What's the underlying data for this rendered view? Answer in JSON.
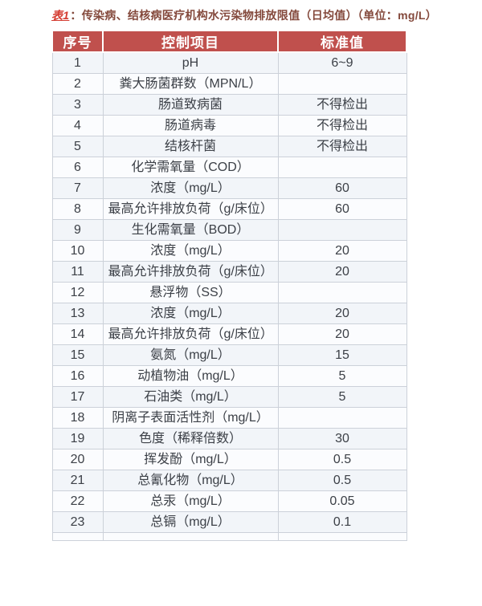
{
  "title": {
    "label": "表1",
    "rest": "：传染病、结核病医疗机构水污染物排放限值（日均值）（单位：mg/L）"
  },
  "colors": {
    "header_bg": "#c0504d",
    "header_text": "#ffffff",
    "title_label": "#d43b30",
    "title_text": "#84493c"
  },
  "chart_data": {
    "type": "table",
    "title": "表1：传染病、结核病医疗机构水污染物排放限值（日均值）（单位：mg/L）",
    "columns": [
      "序号",
      "控制项目",
      "标准值"
    ],
    "rows": [
      {
        "no": "1",
        "item": "pH",
        "value": "6~9"
      },
      {
        "no": "2",
        "item": "粪大肠菌群数（MPN/L）",
        "value": ""
      },
      {
        "no": "3",
        "item": "肠道致病菌",
        "value": "不得检出"
      },
      {
        "no": "4",
        "item": "肠道病毒",
        "value": "不得检出"
      },
      {
        "no": "5",
        "item": "结核杆菌",
        "value": "不得检出"
      },
      {
        "no": "6",
        "item": "化学需氧量（COD）",
        "value": ""
      },
      {
        "no": "7",
        "item": "浓度（mg/L）",
        "value": "60"
      },
      {
        "no": "8",
        "item": "最高允许排放负荷（g/床位）",
        "value": "60"
      },
      {
        "no": "9",
        "item": "生化需氧量（BOD）",
        "value": ""
      },
      {
        "no": "10",
        "item": "浓度（mg/L）",
        "value": "20"
      },
      {
        "no": "11",
        "item": "最高允许排放负荷（g/床位）",
        "value": "20"
      },
      {
        "no": "12",
        "item": "悬浮物（SS）",
        "value": ""
      },
      {
        "no": "13",
        "item": "浓度（mg/L）",
        "value": "20"
      },
      {
        "no": "14",
        "item": "最高允许排放负荷（g/床位）",
        "value": "20"
      },
      {
        "no": "15",
        "item": "氨氮（mg/L）",
        "value": "15"
      },
      {
        "no": "16",
        "item": "动植物油（mg/L）",
        "value": "5"
      },
      {
        "no": "17",
        "item": "石油类（mg/L）",
        "value": "5"
      },
      {
        "no": "18",
        "item": "阴离子表面活性剂（mg/L）",
        "value": ""
      },
      {
        "no": "19",
        "item": "色度（稀释倍数）",
        "value": "30"
      },
      {
        "no": "20",
        "item": "挥发酚（mg/L）",
        "value": "0.5"
      },
      {
        "no": "21",
        "item": "总氰化物（mg/L）",
        "value": "0.5"
      },
      {
        "no": "22",
        "item": "总汞（mg/L）",
        "value": "0.05"
      },
      {
        "no": "23",
        "item": "总镉（mg/L）",
        "value": "0.1"
      }
    ]
  }
}
